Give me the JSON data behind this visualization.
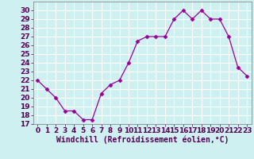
{
  "x": [
    0,
    1,
    2,
    3,
    4,
    5,
    6,
    7,
    8,
    9,
    10,
    11,
    12,
    13,
    14,
    15,
    16,
    17,
    18,
    19,
    20,
    21,
    22,
    23
  ],
  "y": [
    22,
    21,
    20,
    18.5,
    18.5,
    17.5,
    17.5,
    20.5,
    21.5,
    22,
    24,
    26.5,
    27,
    27,
    27,
    29,
    30,
    29,
    30,
    29,
    29,
    27,
    23.5,
    22.5
  ],
  "line_color": "#990099",
  "marker": "D",
  "marker_size": 2.5,
  "bg_color": "#cff0f0",
  "grid_color": "#ffffff",
  "xlabel": "Windchill (Refroidissement éolien,°C)",
  "xlabel_fontsize": 7,
  "tick_fontsize": 6.5,
  "ylim": [
    17,
    31
  ],
  "xlim": [
    -0.5,
    23.5
  ],
  "yticks": [
    17,
    18,
    19,
    20,
    21,
    22,
    23,
    24,
    25,
    26,
    27,
    28,
    29,
    30
  ],
  "xticks": [
    0,
    1,
    2,
    3,
    4,
    5,
    6,
    7,
    8,
    9,
    10,
    11,
    12,
    13,
    14,
    15,
    16,
    17,
    18,
    19,
    20,
    21,
    22,
    23
  ]
}
